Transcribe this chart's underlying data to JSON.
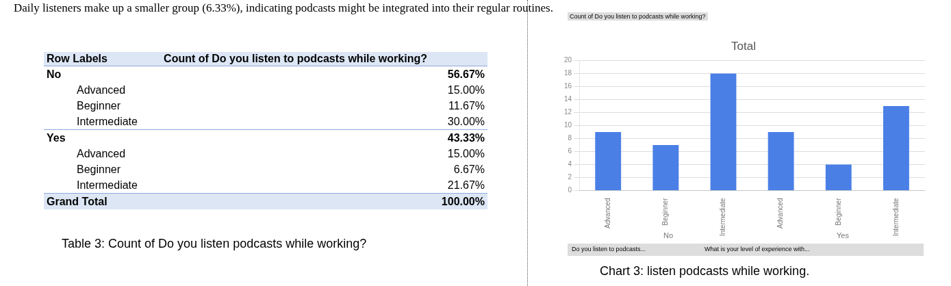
{
  "chart_data": [
    {
      "type": "other",
      "title": "Count of Do you listen to podcasts while working?",
      "xlabel": "Row Labels",
      "categories": [
        "No",
        "Advanced",
        "Beginner",
        "Intermediate",
        "Yes",
        "Advanced",
        "Beginner",
        "Intermediate",
        "Grand Total"
      ],
      "value_labels": [
        "56.67%",
        "15.00%",
        "11.67%",
        "30.00%",
        "43.33%",
        "15.00%",
        "6.67%",
        "21.67%",
        "100.00%"
      ],
      "annotations": [
        "Daily listeners make up a smaller group (6.33%), indicating podcasts might be integrated into their regular routines.",
        "Table 3: Count of Do you listen podcasts while working?"
      ]
    },
    {
      "type": "bar",
      "title": "Total",
      "subtitle": "Count of Do you listen to podcasts while working?",
      "categories": [
        "Advanced",
        "Beginner",
        "Intermediate",
        "Advanced",
        "Beginner",
        "Intermediate"
      ],
      "series": [
        {
          "color": "#4a7fe6",
          "values": [
            9,
            7,
            18,
            9,
            4,
            13
          ]
        }
      ],
      "ylim": [
        0,
        20
      ],
      "yticks": [
        0,
        2,
        4,
        6,
        8,
        10,
        12,
        14,
        16,
        18,
        20
      ],
      "grid": "y",
      "legend": false,
      "annotations": [
        "No",
        "Yes",
        "Do you listen to podcasts...",
        "What is your level of experience with...",
        "Chart 3: listen podcasts while working."
      ]
    }
  ]
}
